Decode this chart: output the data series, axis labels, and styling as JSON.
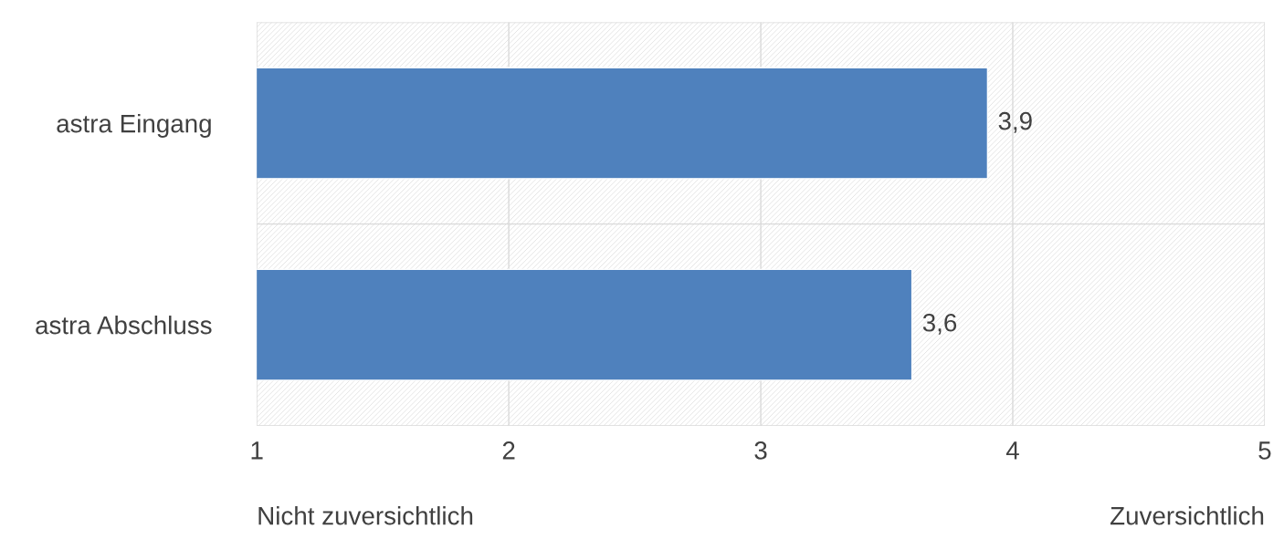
{
  "chart_data": {
    "type": "bar",
    "orientation": "horizontal",
    "categories": [
      "astra Eingang",
      "astra Abschluss"
    ],
    "values": [
      3.9,
      3.6
    ],
    "color": "#4f81bd",
    "value_labels": [
      "3,9",
      "3,6"
    ],
    "xlim": [
      1,
      5
    ],
    "xticks": [
      1,
      2,
      3,
      4,
      5
    ],
    "grid": true,
    "annotations": [
      "Nicht zuversichtlich",
      "Zuversichtlich"
    ]
  }
}
